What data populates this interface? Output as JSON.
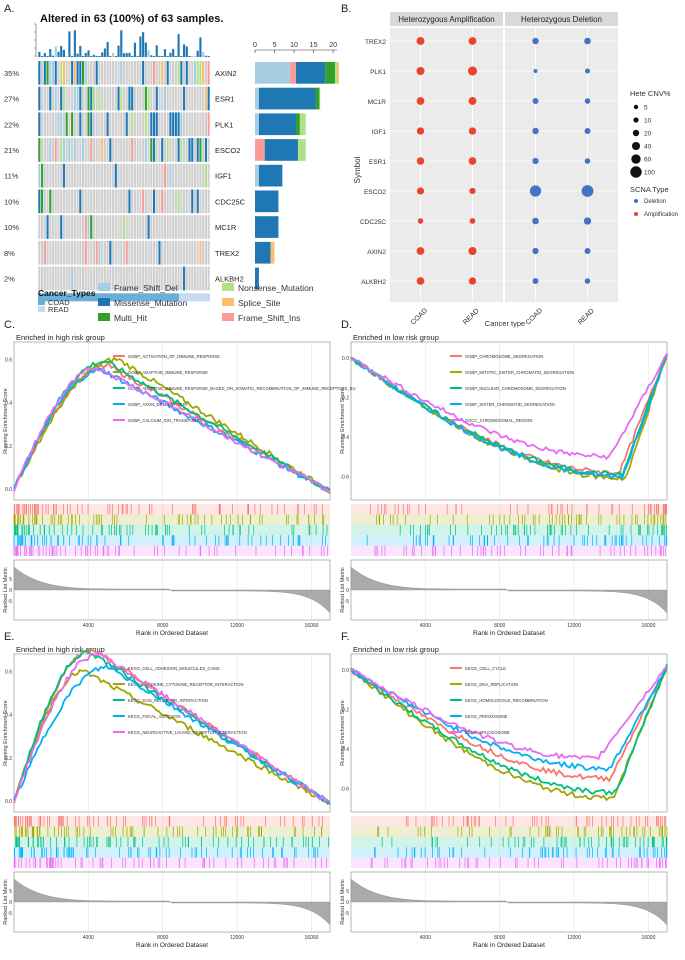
{
  "chart_data": [
    {
      "panel": "A",
      "type": "oncoplot",
      "title": "Altered in 63 (100%) of 63 samples.",
      "genes": [
        "AXIN2",
        "ESR1",
        "PLK1",
        "ESCO2",
        "IGF1",
        "CDC25C",
        "MC1R",
        "TREX2",
        "ALKBH2"
      ],
      "percents": [
        "35%",
        "27%",
        "22%",
        "21%",
        "11%",
        "10%",
        "10%",
        "8%",
        "2%"
      ],
      "bar_axis_ticks": [
        "0",
        "5",
        "10",
        "15",
        "20"
      ],
      "bar_xlim": [
        0,
        21
      ],
      "bar_series": [
        {
          "name": "Frame_Shift_Del",
          "color": "#a6cee3",
          "values": [
            9,
            1,
            1,
            0,
            1,
            0,
            0,
            0,
            0
          ]
        },
        {
          "name": "Frame_Shift_Ins",
          "color": "#fb9a99",
          "values": [
            1.5,
            0,
            0,
            2.5,
            0,
            0,
            0,
            0,
            0
          ]
        },
        {
          "name": "Missense_Mutation",
          "color": "#1f78b4",
          "values": [
            7.5,
            14.5,
            9.5,
            8.5,
            6,
            6,
            6,
            4,
            1
          ]
        },
        {
          "name": "Multi_Hit",
          "color": "#33a02c",
          "values": [
            2.5,
            1,
            1,
            0,
            0,
            0,
            0,
            0,
            0
          ]
        },
        {
          "name": "Nonsense_Mutation",
          "color": "#b2df8a",
          "values": [
            0.5,
            0.2,
            1.5,
            2,
            0,
            0,
            0,
            0,
            0
          ]
        },
        {
          "name": "Splice_Site",
          "color": "#fdbf6f",
          "values": [
            0.5,
            0,
            0,
            0,
            0,
            0,
            0,
            1,
            0
          ]
        }
      ],
      "cancer_types_title": "Cancer_Types",
      "cancer_types": [
        {
          "name": "COAD",
          "color": "#6baed6"
        },
        {
          "name": "READ",
          "color": "#c6dbef"
        }
      ],
      "legend": [
        {
          "name": "Frame_Shift_Del",
          "color": "#a6cee3"
        },
        {
          "name": "Nonsense_Mutation",
          "color": "#b2df8a"
        },
        {
          "name": "Missense_Mutation",
          "color": "#1f78b4"
        },
        {
          "name": "Splice_Site",
          "color": "#fdbf6f"
        },
        {
          "name": "Multi_Hit",
          "color": "#33a02c"
        },
        {
          "name": "Frame_Shift_Ins",
          "color": "#fb9a99"
        }
      ]
    },
    {
      "panel": "B",
      "type": "dotplot",
      "facets": [
        "Heterozygous Amplification",
        "Heterozygous Deletion"
      ],
      "symbols": [
        "TREX2",
        "PLK1",
        "MC1R",
        "IGF1",
        "ESR1",
        "ESCO2",
        "CDC25C",
        "AXIN2",
        "ALKBH2"
      ],
      "x": [
        "COAD",
        "READ"
      ],
      "amplification_pct": {
        "COAD": [
          38,
          40,
          35,
          30,
          32,
          28,
          12,
          36,
          34
        ],
        "READ": [
          36,
          55,
          38,
          30,
          34,
          18,
          14,
          40,
          30
        ]
      },
      "deletion_pct": {
        "COAD": [
          20,
          3,
          15,
          20,
          18,
          95,
          22,
          18,
          15
        ],
        "READ": [
          22,
          8,
          12,
          15,
          12,
          110,
          30,
          15,
          12
        ]
      },
      "ylabel": "Symbol",
      "xlabel": "Cancer type",
      "size_legend_title": "Hete CNV%",
      "size_legend_values": [
        "5",
        "10",
        "20",
        "40",
        "60",
        "100"
      ],
      "color_legend_title": "SCNA Type",
      "color_legend": [
        {
          "name": "Deletion",
          "color": "#4472c4"
        },
        {
          "name": "Amplification",
          "color": "#e8442e"
        }
      ]
    },
    {
      "panel": "C",
      "type": "gsea",
      "title": "Enriched in high risk group",
      "ylabel_top": "Running Enrichment Score",
      "ylabel_bottom": "Ranked List Metric",
      "xlabel": "Rank in Ordered Dataset",
      "x_ticks": [
        "4000",
        "8000",
        "12000",
        "16000"
      ],
      "y_ticks_top": [
        "0.6",
        "0.4",
        "0.2",
        "0.0"
      ],
      "y_ticks_bottom": [
        "5",
        "0",
        "-5"
      ],
      "xlim": [
        0,
        17000
      ],
      "direction": "up",
      "series": [
        {
          "name": "GOBP_ACTIVATION_OF_IMMUNE_RESPONSE",
          "color": "#f8766d",
          "peak": 0.57,
          "peak_at": 0.3
        },
        {
          "name": "GOBP_ADAPTIVE_IMMUNE_RESPONSE",
          "color": "#a3a500",
          "peak": 0.6,
          "peak_at": 0.33
        },
        {
          "name": "GOBP_ADAPTIVE_IMMUNE_RESPONSE_BASED_ON_SOMATIC_RECOMBINATION_OF_IMMUNE_RECEPTORS_BU",
          "color": "#00bf7d",
          "peak": 0.59,
          "peak_at": 0.29
        },
        {
          "name": "GOBP_AXON_DEVELOPMENT",
          "color": "#00b0f6",
          "peak": 0.55,
          "peak_at": 0.28
        },
        {
          "name": "GOBP_CALCIUM_ION_TRANSPORT",
          "color": "#e76bf3",
          "peak": 0.56,
          "peak_at": 0.27
        }
      ]
    },
    {
      "panel": "D",
      "type": "gsea",
      "title": "Enriched in low risk group",
      "ylabel_top": "Running Enrichment Score",
      "ylabel_bottom": "Ranked List Metric",
      "xlabel": "Rank in Ordered Dataset",
      "x_ticks": [
        "4000",
        "8000",
        "12000",
        "16000"
      ],
      "y_ticks_top": [
        "0.0",
        "-0.2",
        "-0.4",
        "-0.6"
      ],
      "y_ticks_bottom": [
        "5",
        "0",
        "-5"
      ],
      "xlim": [
        0,
        17000
      ],
      "direction": "down",
      "series": [
        {
          "name": "GOBP_CHROMOSOME_SEGREGATION",
          "color": "#f8766d",
          "peak": -0.58,
          "peak_at": 0.85
        },
        {
          "name": "GOBP_MITOTIC_SISTER_CHROMATID_SEGREGATION",
          "color": "#a3a500",
          "peak": -0.61,
          "peak_at": 0.87
        },
        {
          "name": "GOBP_NUCLEAR_CHROMOSOME_SEGREGATION",
          "color": "#00bf7d",
          "peak": -0.59,
          "peak_at": 0.86
        },
        {
          "name": "GOBP_SISTER_CHROMATID_SEGREGATION",
          "color": "#00b0f6",
          "peak": -0.6,
          "peak_at": 0.86
        },
        {
          "name": "GOCC_CHROMOSOMAL_REGION",
          "color": "#e76bf3",
          "peak": -0.5,
          "peak_at": 0.82
        }
      ]
    },
    {
      "panel": "E",
      "type": "gsea",
      "title": "Enriched in high risk group",
      "ylabel_top": "Running Enrichment Score",
      "ylabel_bottom": "Ranked List Metric",
      "xlabel": "Rank in Ordered Dataset",
      "x_ticks": [
        "4000",
        "8000",
        "12000",
        "16000"
      ],
      "y_ticks_top": [
        "0.6",
        "0.4",
        "0.2",
        "0.0"
      ],
      "y_ticks_bottom": [
        "5",
        "0",
        "-5"
      ],
      "xlim": [
        0,
        17000
      ],
      "direction": "up",
      "series": [
        {
          "name": "KEGG_CELL_ADHESION_MOLECULES_CAMS",
          "color": "#f8766d",
          "peak": 0.7,
          "peak_at": 0.25
        },
        {
          "name": "KEGG_CYTOKINE_CYTOKINE_RECEPTOR_INTERACTION",
          "color": "#a3a500",
          "peak": 0.6,
          "peak_at": 0.22
        },
        {
          "name": "KEGG_ECM_RECEPTOR_INTERACTION",
          "color": "#00bf7d",
          "peak": 0.69,
          "peak_at": 0.24
        },
        {
          "name": "KEGG_FOCAL_ADHESION",
          "color": "#00b0f6",
          "peak": 0.62,
          "peak_at": 0.3
        },
        {
          "name": "KEGG_NEUROACTIVE_LIGAND_RECEPTOR_INTERACTION",
          "color": "#e76bf3",
          "peak": 0.68,
          "peak_at": 0.27
        }
      ]
    },
    {
      "panel": "F",
      "type": "gsea",
      "title": "Enriched in low risk group",
      "ylabel_top": "Running Enrichment Score",
      "ylabel_bottom": "Ranked List Metric",
      "xlabel": "Rank in Ordered Dataset",
      "x_ticks": [
        "4000",
        "8000",
        "12000",
        "16000"
      ],
      "y_ticks_top": [
        "0.0",
        "-0.2",
        "-0.4",
        "-0.6"
      ],
      "y_ticks_bottom": [
        "5",
        "0",
        "-5"
      ],
      "xlim": [
        0,
        17000
      ],
      "direction": "down",
      "series": [
        {
          "name": "KEGG_CELL_CYCLE",
          "color": "#f8766d",
          "peak": -0.55,
          "peak_at": 0.82
        },
        {
          "name": "KEGG_DNA_REPLICATION",
          "color": "#a3a500",
          "peak": -0.65,
          "peak_at": 0.83
        },
        {
          "name": "KEGG_HOMOLOGOUS_RECOMBINATION",
          "color": "#00bf7d",
          "peak": -0.62,
          "peak_at": 0.84
        },
        {
          "name": "KEGG_PEROXISOME",
          "color": "#00b0f6",
          "peak": -0.5,
          "peak_at": 0.82
        },
        {
          "name": "KEGG_SPLICEOSOME",
          "color": "#e76bf3",
          "peak": -0.45,
          "peak_at": 0.78
        }
      ]
    }
  ],
  "panel_labels": [
    "A.",
    "B.",
    "C.",
    "D.",
    "E.",
    "F."
  ]
}
